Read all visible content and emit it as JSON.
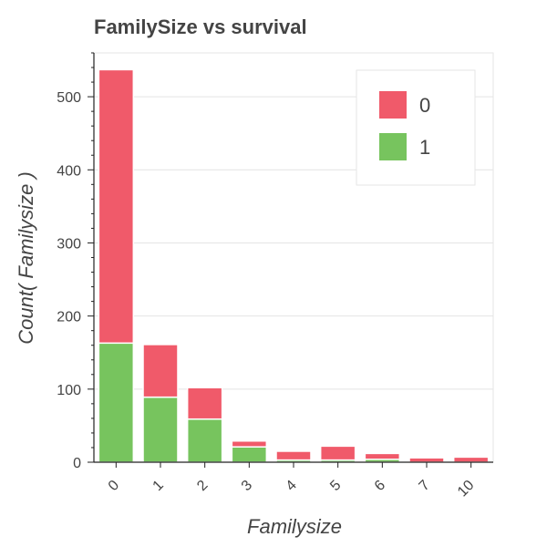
{
  "chart_data": {
    "type": "bar",
    "stacked": true,
    "title": "FamilySize vs survival",
    "xlabel": "Familysize",
    "ylabel": "Count( Familysize )",
    "categories": [
      "0",
      "1",
      "2",
      "3",
      "4",
      "5",
      "6",
      "7",
      "10"
    ],
    "ylim": [
      0,
      560
    ],
    "yticks": [
      0,
      100,
      200,
      300,
      400,
      500
    ],
    "grid": true,
    "legend_position": "top-right",
    "series": [
      {
        "name": "0",
        "color": "#f05a6a",
        "values": [
          374,
          72,
          43,
          8,
          12,
          19,
          8,
          6,
          7
        ]
      },
      {
        "name": "1",
        "color": "#77c45e",
        "values": [
          163,
          89,
          59,
          21,
          3,
          3,
          4,
          0,
          0
        ]
      }
    ]
  }
}
